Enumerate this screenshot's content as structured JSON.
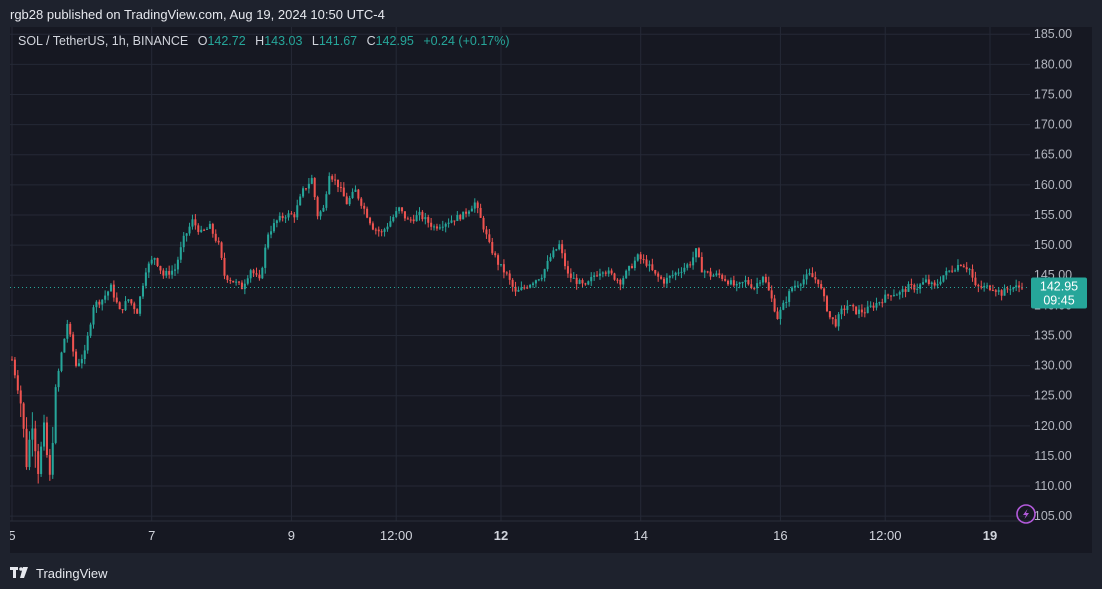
{
  "header": {
    "publisher": "rgb28 published on TradingView.com, Aug 19, 2024 10:50 UTC-4"
  },
  "legend": {
    "symbol": "SOL / TetherUS, 1h, BINANCE",
    "open_label": "O",
    "open": "142.72",
    "high_label": "H",
    "high": "143.03",
    "low_label": "L",
    "low": "141.67",
    "close_label": "C",
    "close": "142.95",
    "change": "+0.24 (+0.17%)"
  },
  "price_tag": {
    "price": "142.95",
    "countdown": "09:45"
  },
  "footer": {
    "brand": "TradingView"
  },
  "colors": {
    "up": "#26a69a",
    "down": "#ef5350",
    "background": "#161822",
    "grid": "#252936"
  },
  "chart_data": {
    "type": "candlestick",
    "title": "SOL / TetherUS, 1h, BINANCE",
    "y_ticks": [
      105,
      110,
      115,
      120,
      125,
      130,
      135,
      140,
      145,
      150,
      155,
      160,
      165,
      170,
      175,
      180,
      185
    ],
    "y_tick_labels": [
      "105.00",
      "110.00",
      "115.00",
      "120.00",
      "125.00",
      "130.00",
      "135.00",
      "140.00",
      "145.00",
      "150.00",
      "155.00",
      "160.00",
      "165.00",
      "170.00",
      "175.00",
      "180.00",
      "185.00"
    ],
    "ylim": [
      104.2,
      186.2
    ],
    "x_tick_labels": [
      "5",
      "7",
      "9",
      "12:00",
      "12",
      "14",
      "16",
      "12:00",
      "19"
    ],
    "x_tick_hours": [
      0,
      48,
      96,
      132,
      168,
      216,
      264,
      300,
      336
    ],
    "bold_x_ticks": [
      "12",
      "19"
    ],
    "hours_total": 347,
    "last_price": 142.95,
    "price_path": [
      [
        0,
        131
      ],
      [
        3,
        124
      ],
      [
        5,
        114
      ],
      [
        7,
        121
      ],
      [
        9,
        113
      ],
      [
        11,
        119
      ],
      [
        13,
        111
      ],
      [
        15,
        126
      ],
      [
        17,
        132
      ],
      [
        19,
        137
      ],
      [
        22,
        130
      ],
      [
        25,
        132
      ],
      [
        28,
        140
      ],
      [
        31,
        141
      ],
      [
        34,
        143
      ],
      [
        37,
        139
      ],
      [
        40,
        141
      ],
      [
        43,
        139
      ],
      [
        46,
        146
      ],
      [
        49,
        148
      ],
      [
        52,
        145
      ],
      [
        56,
        146
      ],
      [
        59,
        151
      ],
      [
        62,
        154
      ],
      [
        65,
        152
      ],
      [
        68,
        153
      ],
      [
        71,
        150
      ],
      [
        73,
        145
      ],
      [
        76,
        144
      ],
      [
        79,
        143
      ],
      [
        82,
        146
      ],
      [
        85,
        144
      ],
      [
        88,
        152
      ],
      [
        91,
        154
      ],
      [
        94,
        155
      ],
      [
        97,
        155
      ],
      [
        100,
        159
      ],
      [
        103,
        161
      ],
      [
        105,
        155
      ],
      [
        107,
        156
      ],
      [
        109,
        162
      ],
      [
        112,
        160
      ],
      [
        115,
        157
      ],
      [
        118,
        159
      ],
      [
        121,
        156
      ],
      [
        124,
        153
      ],
      [
        127,
        152
      ],
      [
        130,
        154
      ],
      [
        133,
        156
      ],
      [
        136,
        154
      ],
      [
        140,
        155
      ],
      [
        145,
        153
      ],
      [
        150,
        154
      ],
      [
        155,
        155
      ],
      [
        159,
        157
      ],
      [
        162,
        153
      ],
      [
        164,
        150
      ],
      [
        167,
        147
      ],
      [
        170,
        145
      ],
      [
        173,
        142
      ],
      [
        176,
        143
      ],
      [
        179,
        144
      ],
      [
        182,
        145
      ],
      [
        185,
        148
      ],
      [
        188,
        150
      ],
      [
        191,
        145
      ],
      [
        194,
        144
      ],
      [
        197,
        143
      ],
      [
        200,
        145
      ],
      [
        203,
        146
      ],
      [
        206,
        145
      ],
      [
        209,
        144
      ],
      [
        212,
        146
      ],
      [
        215,
        148
      ],
      [
        218,
        147
      ],
      [
        221,
        145
      ],
      [
        224,
        144
      ],
      [
        227,
        145
      ],
      [
        230,
        146
      ],
      [
        233,
        147
      ],
      [
        235,
        149
      ],
      [
        237,
        146
      ],
      [
        240,
        145
      ],
      [
        243,
        145
      ],
      [
        246,
        144
      ],
      [
        249,
        143
      ],
      [
        252,
        144
      ],
      [
        255,
        143
      ],
      [
        258,
        145
      ],
      [
        261,
        141
      ],
      [
        263,
        138
      ],
      [
        265,
        140
      ],
      [
        268,
        143
      ],
      [
        271,
        144
      ],
      [
        274,
        145
      ],
      [
        277,
        144
      ],
      [
        279,
        141
      ],
      [
        281,
        138
      ],
      [
        283,
        137
      ],
      [
        285,
        139
      ],
      [
        287,
        140
      ],
      [
        290,
        139
      ],
      [
        293,
        139
      ],
      [
        296,
        140
      ],
      [
        299,
        141
      ],
      [
        302,
        142
      ],
      [
        305,
        142
      ],
      [
        308,
        143
      ],
      [
        311,
        143
      ],
      [
        314,
        144
      ],
      [
        317,
        143
      ],
      [
        320,
        145
      ],
      [
        323,
        146
      ],
      [
        326,
        147
      ],
      [
        329,
        146
      ],
      [
        331,
        143
      ],
      [
        334,
        143
      ],
      [
        337,
        143
      ],
      [
        340,
        142
      ],
      [
        343,
        143
      ],
      [
        346,
        143
      ]
    ]
  }
}
